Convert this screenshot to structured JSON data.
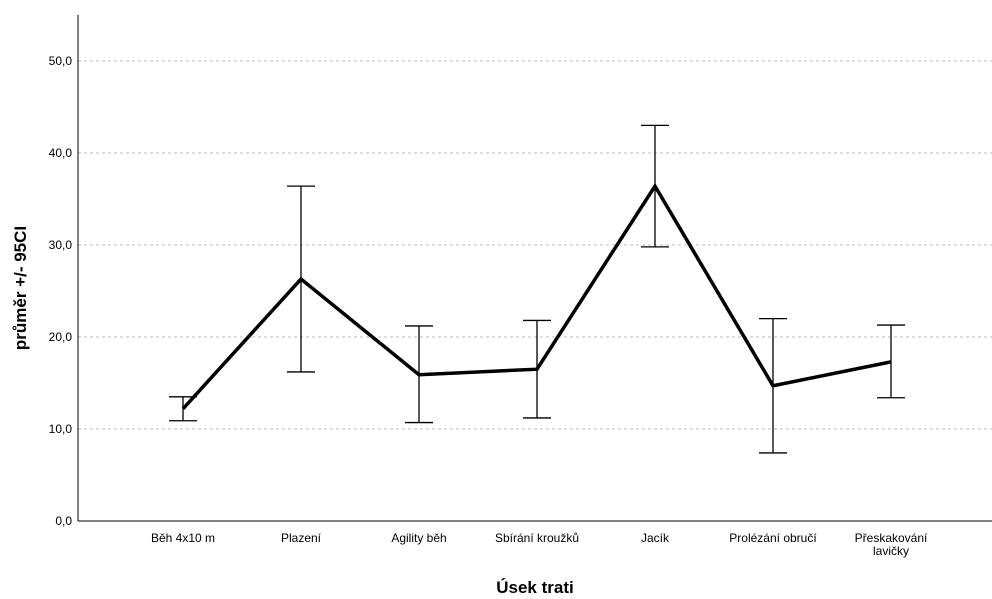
{
  "chart_data": {
    "type": "line",
    "xlabel": "Úsek trati",
    "ylabel": "průměr +/- 95CI",
    "ylim": [
      0,
      55
    ],
    "yticks": [
      0,
      10,
      20,
      30,
      40,
      50
    ],
    "ytick_labels": [
      "0,0",
      "10,0",
      "20,0",
      "30,0",
      "40,0",
      "50,0"
    ],
    "grid": true,
    "categories": [
      [
        "Běh 4x10 m"
      ],
      [
        "Plazení"
      ],
      [
        "Agility běh"
      ],
      [
        "Sbírání kroužků"
      ],
      [
        "Jacík"
      ],
      [
        "Prolézání obručí"
      ],
      [
        "Přeskakování",
        "lavičky"
      ]
    ],
    "series": [
      {
        "values": [
          12.2,
          26.3,
          15.9,
          16.5,
          36.4,
          14.7,
          17.3
        ],
        "ci_low": [
          10.9,
          16.2,
          10.7,
          11.2,
          29.8,
          7.4,
          13.4
        ],
        "ci_high": [
          13.5,
          36.4,
          21.2,
          21.8,
          43.0,
          22.0,
          21.3
        ],
        "color": "#000000"
      }
    ]
  }
}
